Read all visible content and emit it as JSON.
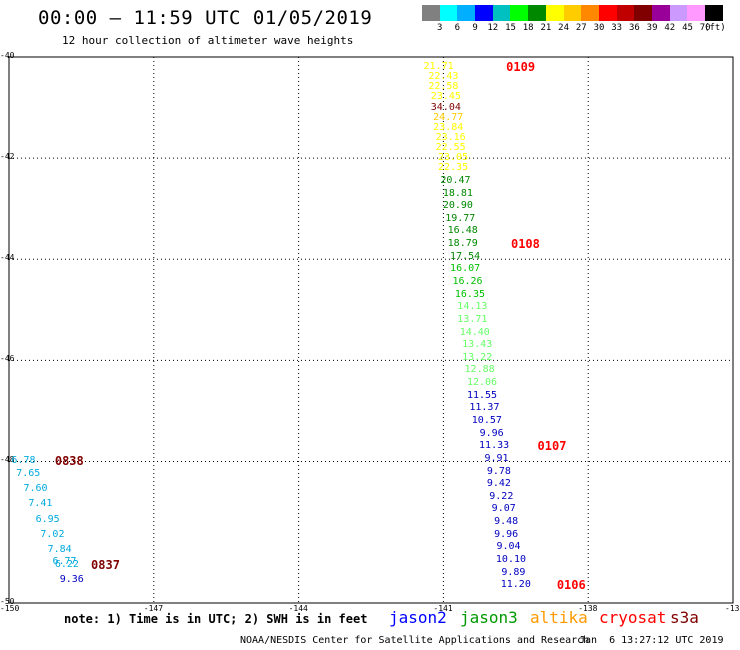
{
  "header": {
    "title": "00:00 – 11:59 UTC 01/05/2019",
    "subtitle": "12 hour collection of altimeter wave heights"
  },
  "colorbar": {
    "colors": [
      "#808080",
      "#00ffff",
      "#00b0ff",
      "#0000ff",
      "#00c0c0",
      "#00ff00",
      "#008800",
      "#ffff00",
      "#ffcc00",
      "#ff8800",
      "#ff0000",
      "#c00000",
      "#800000",
      "#990099",
      "#cc99ff",
      "#ff99ff",
      "#000000"
    ],
    "labels": [
      "3",
      "6",
      "9",
      "12",
      "15",
      "18",
      "21",
      "24",
      "27",
      "30",
      "33",
      "36",
      "39",
      "42",
      "45",
      "70",
      "(ft)"
    ]
  },
  "map": {
    "lon_ticks": [
      "-150",
      "-147",
      "-144",
      "-141",
      "-138",
      "-13"
    ],
    "lat_ticks": [
      "-40",
      "-42",
      "-44",
      "-46",
      "-48",
      "-50"
    ]
  },
  "tracks": [
    {
      "name": "east-track",
      "points": [
        {
          "lat": -40.2,
          "lon": -141.1,
          "v": "21.71",
          "color": "#ffff00"
        },
        {
          "lat": -40.4,
          "lon": -141.0,
          "v": "22.43",
          "color": "#ffff00"
        },
        {
          "lat": -40.6,
          "lon": -141.0,
          "v": "22.58",
          "color": "#ffff00"
        },
        {
          "lat": -40.8,
          "lon": -140.95,
          "v": "23.45",
          "color": "#ffff00"
        },
        {
          "lat": -41.0,
          "lon": -140.95,
          "v": "34.04",
          "color": "#800000"
        },
        {
          "lat": -41.2,
          "lon": -140.9,
          "v": "24.77",
          "color": "#ffcc00"
        },
        {
          "lat": -41.4,
          "lon": -140.9,
          "v": "23.84",
          "color": "#ffff00"
        },
        {
          "lat": -41.6,
          "lon": -140.85,
          "v": "23.16",
          "color": "#ffff00"
        },
        {
          "lat": -41.8,
          "lon": -140.85,
          "v": "22.55",
          "color": "#ffff00"
        },
        {
          "lat": -42.0,
          "lon": -140.8,
          "v": "23.05",
          "color": "#ffff00"
        },
        {
          "lat": -42.2,
          "lon": -140.8,
          "v": "22.35",
          "color": "#ffff00"
        },
        {
          "lat": -42.45,
          "lon": -140.75,
          "v": "20.47",
          "color": "#008800"
        },
        {
          "lat": -42.7,
          "lon": -140.7,
          "v": "18.81",
          "color": "#008800"
        },
        {
          "lat": -42.95,
          "lon": -140.7,
          "v": "20.90",
          "color": "#008800"
        },
        {
          "lat": -43.2,
          "lon": -140.65,
          "v": "19.77",
          "color": "#008800"
        },
        {
          "lat": -43.45,
          "lon": -140.6,
          "v": "16.48",
          "color": "#008800"
        },
        {
          "lat": -43.7,
          "lon": -140.6,
          "v": "18.79",
          "color": "#008800"
        },
        {
          "lat": -43.95,
          "lon": -140.55,
          "v": "17.54",
          "color": "#008800"
        },
        {
          "lat": -44.2,
          "lon": -140.55,
          "v": "16.07",
          "color": "#00c000"
        },
        {
          "lat": -44.45,
          "lon": -140.5,
          "v": "16.26",
          "color": "#00c000"
        },
        {
          "lat": -44.7,
          "lon": -140.45,
          "v": "16.35",
          "color": "#00c000"
        },
        {
          "lat": -44.95,
          "lon": -140.4,
          "v": "14.13",
          "color": "#66ff66"
        },
        {
          "lat": -45.2,
          "lon": -140.4,
          "v": "13.71",
          "color": "#66ff66"
        },
        {
          "lat": -45.45,
          "lon": -140.35,
          "v": "14.40",
          "color": "#66ff66"
        },
        {
          "lat": -45.7,
          "lon": -140.3,
          "v": "13.43",
          "color": "#66ff66"
        },
        {
          "lat": -45.95,
          "lon": -140.3,
          "v": "13.22",
          "color": "#66ff66"
        },
        {
          "lat": -46.2,
          "lon": -140.25,
          "v": "12.88",
          "color": "#66ff66"
        },
        {
          "lat": -46.45,
          "lon": -140.2,
          "v": "12.06",
          "color": "#66ff66"
        },
        {
          "lat": -46.7,
          "lon": -140.2,
          "v": "11.55",
          "color": "#0000c0"
        },
        {
          "lat": -46.95,
          "lon": -140.15,
          "v": "11.37",
          "color": "#0000c0"
        },
        {
          "lat": -47.2,
          "lon": -140.1,
          "v": "10.57",
          "color": "#0000c0"
        },
        {
          "lat": -47.45,
          "lon": -140.0,
          "v": "9.96",
          "color": "#0000c0"
        },
        {
          "lat": -47.7,
          "lon": -139.95,
          "v": "11.33",
          "color": "#0000c0"
        },
        {
          "lat": -47.95,
          "lon": -139.9,
          "v": "9.91",
          "color": "#0000c0"
        },
        {
          "lat": -48.2,
          "lon": -139.85,
          "v": "9.78",
          "color": "#0000c0"
        },
        {
          "lat": -48.45,
          "lon": -139.85,
          "v": "9.42",
          "color": "#0000c0"
        },
        {
          "lat": -48.7,
          "lon": -139.8,
          "v": "9.22",
          "color": "#0000c0"
        },
        {
          "lat": -48.95,
          "lon": -139.75,
          "v": "9.07",
          "color": "#0000c0"
        },
        {
          "lat": -49.2,
          "lon": -139.7,
          "v": "9.48",
          "color": "#0000c0"
        },
        {
          "lat": -49.45,
          "lon": -139.7,
          "v": "9.96",
          "color": "#0000c0"
        },
        {
          "lat": -49.7,
          "lon": -139.65,
          "v": "9.04",
          "color": "#0000c0"
        },
        {
          "lat": -49.95,
          "lon": -139.6,
          "v": "10.10",
          "color": "#0000c0"
        },
        {
          "lat": -50.2,
          "lon": -139.55,
          "v": "9.89",
          "color": "#0000c0"
        },
        {
          "lat": -50.45,
          "lon": -139.5,
          "v": "11.20",
          "color": "#0000c0"
        }
      ]
    },
    {
      "name": "west-track",
      "points": [
        {
          "lat": -48.0,
          "lon": -149.7,
          "v": "6.78",
          "color": "#00aadd"
        },
        {
          "lat": -48.25,
          "lon": -149.6,
          "v": "7.65",
          "color": "#00aadd"
        },
        {
          "lat": -48.55,
          "lon": -149.45,
          "v": "7.60",
          "color": "#00aadd"
        },
        {
          "lat": -48.85,
          "lon": -149.35,
          "v": "7.41",
          "color": "#00aadd"
        },
        {
          "lat": -49.15,
          "lon": -149.2,
          "v": "6.95",
          "color": "#00aadd"
        },
        {
          "lat": -49.45,
          "lon": -149.1,
          "v": "7.02",
          "color": "#00aadd"
        },
        {
          "lat": -49.75,
          "lon": -148.95,
          "v": "7.84",
          "color": "#00aadd"
        },
        {
          "lat": -49.98,
          "lon": -148.85,
          "v": "6.77",
          "color": "#00aadd"
        },
        {
          "lat": -50.05,
          "lon": -148.8,
          "v": "6.22",
          "color": "#00aadd"
        },
        {
          "lat": -50.35,
          "lon": -148.7,
          "v": "9.36",
          "color": "#0000c0"
        }
      ]
    }
  ],
  "times": [
    {
      "lat": -40.2,
      "lon": -139.7,
      "t": "0109",
      "color": "#ff0000"
    },
    {
      "lat": -43.7,
      "lon": -139.6,
      "t": "0108",
      "color": "#ff0000"
    },
    {
      "lat": -47.7,
      "lon": -139.05,
      "t": "0107",
      "color": "#ff0000"
    },
    {
      "lat": -50.45,
      "lon": -138.65,
      "t": "0106",
      "color": "#ff0000"
    },
    {
      "lat": -48.0,
      "lon": -149.05,
      "t": "0838",
      "color": "#800000"
    },
    {
      "lat": -50.05,
      "lon": -148.3,
      "t": "0837",
      "color": "#800000"
    }
  ],
  "footer": {
    "note": "note: 1) Time is in UTC; 2) SWH is in feet",
    "legend": [
      {
        "label": "jason2",
        "color": "#0000ff"
      },
      {
        "label": "jason3",
        "color": "#009900"
      },
      {
        "label": "altika",
        "color": "#ff9900"
      },
      {
        "label": "cryosat",
        "color": "#ff0000"
      },
      {
        "label": "s3a",
        "color": "#800000"
      }
    ],
    "credit": "NOAA/NESDIS Center for Satellite Applications and Research",
    "timestamp": "Jan  6 13:27:12 UTC 2019"
  }
}
